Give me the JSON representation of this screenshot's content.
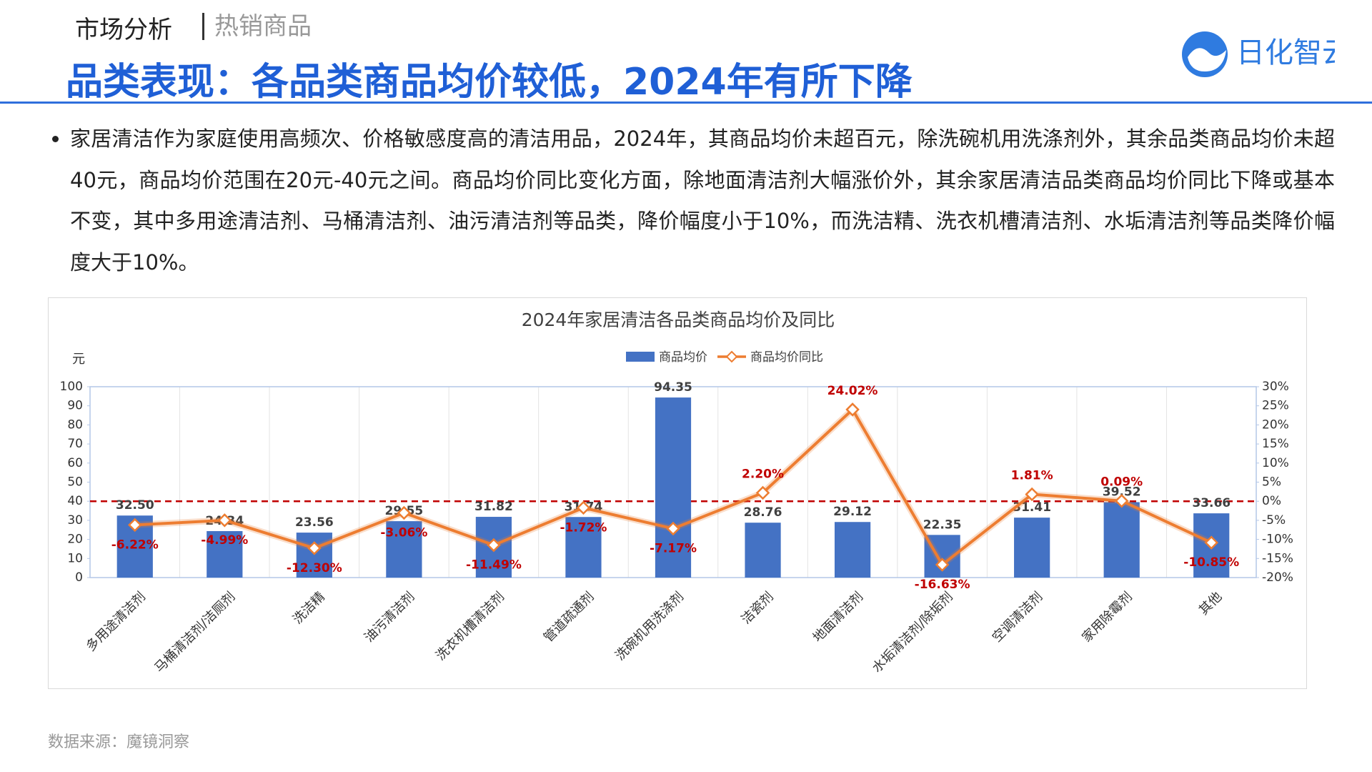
{
  "header": {
    "section": "市场分析",
    "subsection": "热销商品",
    "title": "品类表现：各品类商品均价较低，2024年有所下降",
    "logo": "日化智云"
  },
  "bullets": [
    "家居清洁作为家庭使用高频次、价格敏感度高的清洁用品，2024年，其商品均价未超百元，除洗碗机用洗涤剂外，其余品类商品均价未超40元，商品均价范围在20元-40元之间。商品均价同比变化方面，除地面清洁剂大幅涨价外，其余家居清洁品类商品均价同比下降或基本不变，其中多用途清洁剂、马桶清洁剂、油污清洁剂等品类，降价幅度小于10%，而洗洁精、洗衣机槽清洁剂、水垢清洁剂等品类降价幅度大于10%。"
  ],
  "source": "数据来源：魔镜洞察",
  "chart_data": {
    "type": "combo",
    "title": "2024年家居清洁各品类商品均价及同比",
    "ylabel": "元",
    "categories": [
      "多用途清洁剂",
      "马桶清洁剂/洁厕剂",
      "洗洁精",
      "油污清洁剂",
      "洗衣机槽清洁剂",
      "管道疏通剂",
      "洗碗机用洗涤剂",
      "洁瓷剂",
      "地面清洁剂",
      "水垢清洁剂/除垢剂",
      "空调清洁剂",
      "家用除霉剂",
      "其他"
    ],
    "series": [
      {
        "name": "商品均价",
        "type": "bar",
        "color": "#4472c4",
        "values": [
          32.5,
          24.34,
          23.56,
          29.55,
          31.82,
          31.74,
          94.35,
          28.76,
          29.12,
          22.35,
          31.41,
          39.52,
          33.66
        ],
        "value_labels": [
          "32.50",
          "24.34",
          "23.56",
          "29.55",
          "31.82",
          "31.74",
          "94.35",
          "28.76",
          "29.12",
          "22.35",
          "31.41",
          "39.52",
          "33.66"
        ]
      },
      {
        "name": "商品均价同比",
        "type": "line",
        "axis": "y2",
        "color": "#ed7d31",
        "values": [
          -6.22,
          -4.99,
          -12.3,
          -3.06,
          -11.49,
          -1.72,
          -7.17,
          2.2,
          24.02,
          -16.63,
          1.81,
          0.09,
          -10.85
        ],
        "value_labels": [
          "-6.22%",
          "-4.99%",
          "-12.30%",
          "-3.06%",
          "-11.49%",
          "-1.72%",
          "-7.17%",
          "2.20%",
          "24.02%",
          "-16.63%",
          "1.81%",
          "0.09%",
          "-10.85%"
        ]
      }
    ],
    "ylim": [
      0,
      100
    ],
    "yticks": [
      0,
      10,
      20,
      30,
      40,
      50,
      60,
      70,
      80,
      90,
      100
    ],
    "y2lim": [
      -20,
      30
    ],
    "y2ticks": [
      {
        "value": -20,
        "label": "-20%"
      },
      {
        "value": -15,
        "label": "-15%"
      },
      {
        "value": -10,
        "label": "-10%"
      },
      {
        "value": -5,
        "label": "-5%"
      },
      {
        "value": 0,
        "label": "0%"
      },
      {
        "value": 5,
        "label": "5%"
      },
      {
        "value": 10,
        "label": "10%"
      },
      {
        "value": 15,
        "label": "15%"
      },
      {
        "value": 20,
        "label": "20%"
      },
      {
        "value": 25,
        "label": "25%"
      },
      {
        "value": 30,
        "label": "30%"
      }
    ],
    "reference_line": {
      "axis": "y2",
      "value": 0,
      "color": "#c00000",
      "style": "dashed"
    },
    "legend": "top",
    "grid": true
  }
}
